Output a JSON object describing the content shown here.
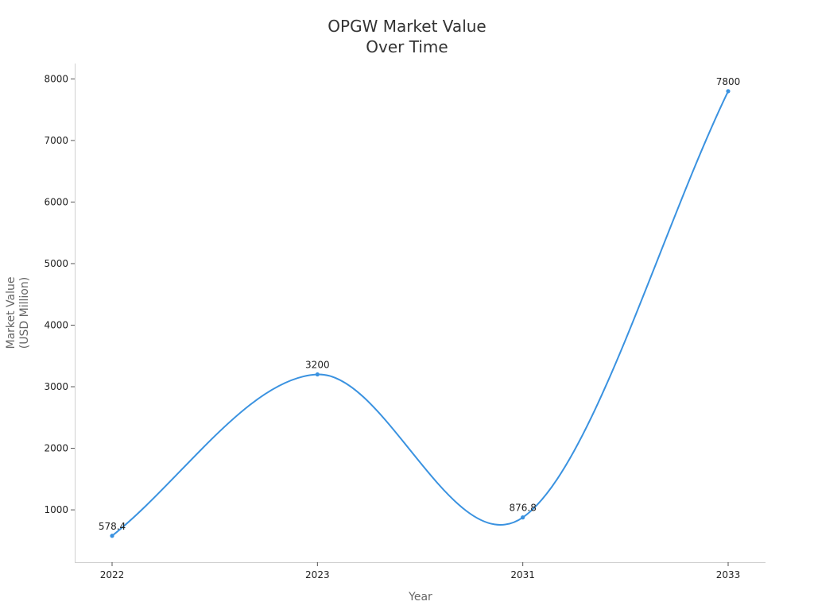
{
  "chart_data": {
    "type": "line",
    "title_lines": [
      "OPGW Market Value",
      "Over Time"
    ],
    "xlabel": "Year",
    "ylabel_lines": [
      "Market Value",
      "(USD Million)"
    ],
    "categories": [
      "2022",
      "2023",
      "2031",
      "2033"
    ],
    "series": [
      {
        "values": [
          578.4,
          3200,
          876.8,
          7800
        ],
        "data_labels": [
          "578.4",
          "3200",
          "876.8",
          "7800"
        ],
        "color": "#3a92e0",
        "smooth": true
      }
    ],
    "y_ticks": [
      1000,
      2000,
      3000,
      4000,
      5000,
      6000,
      7000,
      8000
    ],
    "ylim": [
      150,
      8250
    ],
    "grid": false,
    "legend": "none"
  }
}
